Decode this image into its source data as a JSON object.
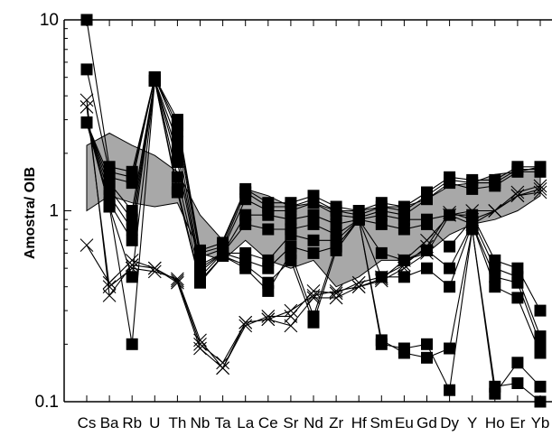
{
  "chart_data": {
    "type": "line",
    "title": "",
    "xlabel": "",
    "ylabel": "Amostra/ OIB",
    "yscale": "log",
    "ylim": [
      0.1,
      10
    ],
    "ytick_labels": [
      "10",
      "1",
      "0.1"
    ],
    "ytick_values": [
      10,
      1,
      0.1
    ],
    "categories": [
      "Cs",
      "Ba",
      "Rb",
      "U",
      "Th",
      "Nb",
      "Ta",
      "La",
      "Ce",
      "Sr",
      "Nd",
      "Zr",
      "Hf",
      "Sm",
      "Eu",
      "Gd",
      "Dy",
      "Y",
      "Ho",
      "Er",
      "Yb"
    ],
    "grid": false,
    "legend": "none",
    "field": {
      "name": "",
      "color": "#a8a8a8",
      "upper": [
        2.2,
        2.55,
        2.2,
        1.95,
        1.6,
        0.95,
        0.7,
        1.3,
        1.2,
        1.05,
        1.1,
        1.0,
        1.0,
        1.05,
        1.05,
        1.15,
        1.35,
        1.4,
        1.55,
        1.6,
        1.7
      ],
      "lower": [
        1.0,
        1.2,
        1.1,
        1.05,
        1.1,
        0.6,
        0.55,
        0.7,
        0.55,
        0.5,
        0.55,
        0.4,
        0.45,
        0.55,
        0.55,
        0.6,
        0.75,
        0.85,
        0.9,
        1.0,
        1.2
      ]
    },
    "series_square": [
      {
        "values": [
          10.0,
          1.7,
          1.6,
          5.0,
          3.0,
          0.62,
          0.68,
          1.3,
          1.1,
          1.1,
          1.2,
          1.05,
          1.0,
          1.1,
          1.05,
          1.25,
          1.5,
          1.45,
          1.45,
          1.7,
          1.7
        ]
      },
      {
        "values": [
          5.5,
          1.6,
          1.5,
          5.0,
          2.8,
          0.6,
          0.65,
          1.25,
          1.05,
          1.05,
          1.15,
          1.0,
          0.95,
          1.05,
          1.0,
          1.2,
          1.45,
          1.4,
          1.4,
          1.65,
          1.65
        ]
      },
      {
        "values": [
          2.9,
          1.5,
          1.4,
          5.0,
          2.6,
          0.57,
          0.63,
          1.15,
          1.0,
          1.0,
          1.1,
          0.95,
          0.92,
          1.0,
          0.95,
          1.15,
          1.4,
          1.3,
          1.35,
          1.6,
          1.6
        ]
      },
      {
        "values": [
          2.9,
          1.4,
          1.0,
          4.8,
          2.3,
          0.52,
          0.6,
          0.95,
          0.95,
          0.9,
          0.95,
          0.85,
          0.9,
          0.95,
          0.9,
          0.9,
          0.95,
          0.95,
          0.55,
          0.5,
          0.3
        ]
      },
      {
        "values": [
          2.9,
          1.3,
          0.9,
          4.8,
          2.0,
          0.5,
          0.6,
          0.85,
          0.8,
          0.8,
          0.85,
          0.75,
          0.9,
          0.85,
          0.8,
          0.85,
          0.65,
          0.9,
          0.5,
          0.45,
          0.22
        ]
      },
      {
        "values": [
          2.9,
          1.2,
          0.8,
          4.8,
          1.8,
          0.48,
          0.6,
          0.6,
          0.55,
          0.75,
          0.7,
          0.7,
          0.9,
          0.6,
          0.55,
          0.62,
          0.5,
          0.85,
          0.45,
          0.42,
          0.2
        ]
      },
      {
        "values": [
          2.9,
          1.1,
          0.7,
          4.8,
          1.5,
          0.45,
          0.6,
          0.55,
          0.5,
          0.65,
          0.6,
          0.65,
          0.9,
          0.45,
          0.45,
          0.5,
          0.4,
          0.85,
          0.4,
          0.35,
          0.18
        ]
      },
      {
        "values": [
          2.9,
          1.05,
          0.45,
          4.8,
          1.3,
          0.43,
          0.58,
          0.5,
          0.38,
          0.6,
          0.28,
          0.65,
          0.9,
          0.21,
          0.18,
          0.17,
          0.19,
          0.8,
          0.11,
          0.16,
          0.12
        ]
      },
      {
        "values": [
          2.9,
          1.05,
          0.2,
          4.8,
          1.25,
          0.42,
          0.58,
          0.52,
          0.42,
          0.55,
          0.26,
          0.62,
          0.9,
          0.2,
          0.19,
          0.2,
          0.115,
          0.8,
          0.12,
          0.125,
          0.1
        ]
      }
    ],
    "series_cross": [
      {
        "values": [
          3.8,
          0.36,
          0.52,
          0.5,
          0.42,
          0.19,
          0.15,
          0.26,
          0.27,
          0.25,
          0.35,
          0.35,
          0.4,
          0.43,
          0.5,
          0.6,
          0.95,
          0.85,
          1.0,
          1.2,
          1.3
        ]
      },
      {
        "values": [
          3.5,
          0.4,
          0.5,
          0.48,
          0.44,
          0.21,
          0.15,
          0.25,
          0.28,
          0.28,
          0.38,
          0.37,
          0.42,
          0.45,
          0.52,
          0.65,
          0.98,
          0.9,
          1.0,
          1.25,
          1.35
        ]
      },
      {
        "values": [
          0.66,
          0.42,
          0.55,
          0.5,
          0.43,
          0.2,
          0.16,
          0.26,
          0.27,
          0.3,
          0.36,
          0.38,
          0.4,
          0.44,
          0.55,
          0.7,
          0.95,
          1.0,
          1.0,
          1.2,
          1.25
        ]
      }
    ]
  }
}
